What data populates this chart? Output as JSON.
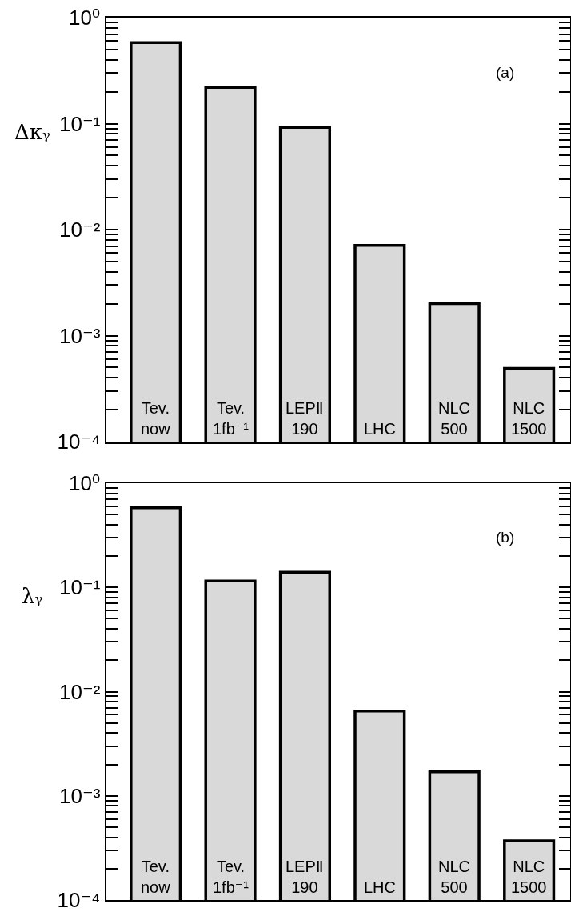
{
  "chart_data": [
    {
      "type": "bar",
      "ylabel": "Δκᵧ",
      "annotations": [
        "(a)"
      ],
      "log": true,
      "color": "#d9d9d9",
      "categories": [
        "Tev.\nnow",
        "Tev.\n1fb⁻¹",
        "LEPⅡ\n190",
        "LHC",
        "NLC\n500",
        "NLC\n1500"
      ],
      "values": [
        0.58,
        0.22,
        0.092,
        0.0071,
        0.002,
        0.00049
      ],
      "ylim": [
        0.0001,
        1
      ],
      "yticks": [
        {
          "value": 1,
          "label": "10⁰"
        },
        {
          "value": 0.1,
          "label": "10⁻¹"
        },
        {
          "value": 0.01,
          "label": "10⁻²"
        },
        {
          "value": 0.001,
          "label": "10⁻³"
        },
        {
          "value": 0.0001,
          "label": "10⁻⁴"
        },
        {
          "value": 0.9,
          "label": null
        },
        {
          "value": 0.8,
          "label": null
        },
        {
          "value": 0.7,
          "label": null
        },
        {
          "value": 0.6,
          "label": null
        },
        {
          "value": 0.5,
          "label": null
        },
        {
          "value": 0.4,
          "label": null
        },
        {
          "value": 0.3,
          "label": null
        },
        {
          "value": 0.2,
          "label": null
        },
        {
          "value": 0.09,
          "label": null
        },
        {
          "value": 0.08,
          "label": null
        },
        {
          "value": 0.07,
          "label": null
        },
        {
          "value": 0.06,
          "label": null
        },
        {
          "value": 0.05,
          "label": null
        },
        {
          "value": 0.04,
          "label": null
        },
        {
          "value": 0.03,
          "label": null
        },
        {
          "value": 0.02,
          "label": null
        },
        {
          "value": 0.009,
          "label": null
        },
        {
          "value": 0.008,
          "label": null
        },
        {
          "value": 0.007,
          "label": null
        },
        {
          "value": 0.006,
          "label": null
        },
        {
          "value": 0.005,
          "label": null
        },
        {
          "value": 0.004,
          "label": null
        },
        {
          "value": 0.003,
          "label": null
        },
        {
          "value": 0.002,
          "label": null
        },
        {
          "value": 0.0009,
          "label": null
        },
        {
          "value": 0.0008,
          "label": null
        },
        {
          "value": 0.0007,
          "label": null
        },
        {
          "value": 0.0006,
          "label": null
        },
        {
          "value": 0.0005,
          "label": null
        },
        {
          "value": 0.0004,
          "label": null
        },
        {
          "value": 0.0003,
          "label": null
        },
        {
          "value": 0.0002,
          "label": null
        }
      ]
    },
    {
      "type": "bar",
      "ylabel": "λᵧ",
      "annotations": [
        "(b)"
      ],
      "log": true,
      "color": "#d9d9d9",
      "categories": [
        "Tev.\nnow",
        "Tev.\n1fb⁻¹",
        "LEPⅡ\n190",
        "LHC",
        "NLC\n500",
        "NLC\n1500"
      ],
      "values": [
        0.58,
        0.115,
        0.14,
        0.0065,
        0.0017,
        0.00037
      ],
      "ylim": [
        0.0001,
        1
      ],
      "yticks": [
        {
          "value": 1,
          "label": "10⁰"
        },
        {
          "value": 0.1,
          "label": "10⁻¹"
        },
        {
          "value": 0.01,
          "label": "10⁻²"
        },
        {
          "value": 0.001,
          "label": "10⁻³"
        },
        {
          "value": 0.0001,
          "label": "10⁻⁴"
        },
        {
          "value": 0.9,
          "label": null
        },
        {
          "value": 0.8,
          "label": null
        },
        {
          "value": 0.7,
          "label": null
        },
        {
          "value": 0.6,
          "label": null
        },
        {
          "value": 0.5,
          "label": null
        },
        {
          "value": 0.4,
          "label": null
        },
        {
          "value": 0.3,
          "label": null
        },
        {
          "value": 0.2,
          "label": null
        },
        {
          "value": 0.09,
          "label": null
        },
        {
          "value": 0.08,
          "label": null
        },
        {
          "value": 0.07,
          "label": null
        },
        {
          "value": 0.06,
          "label": null
        },
        {
          "value": 0.05,
          "label": null
        },
        {
          "value": 0.04,
          "label": null
        },
        {
          "value": 0.03,
          "label": null
        },
        {
          "value": 0.02,
          "label": null
        },
        {
          "value": 0.009,
          "label": null
        },
        {
          "value": 0.008,
          "label": null
        },
        {
          "value": 0.007,
          "label": null
        },
        {
          "value": 0.006,
          "label": null
        },
        {
          "value": 0.005,
          "label": null
        },
        {
          "value": 0.004,
          "label": null
        },
        {
          "value": 0.003,
          "label": null
        },
        {
          "value": 0.002,
          "label": null
        },
        {
          "value": 0.0009,
          "label": null
        },
        {
          "value": 0.0008,
          "label": null
        },
        {
          "value": 0.0007,
          "label": null
        },
        {
          "value": 0.0006,
          "label": null
        },
        {
          "value": 0.0005,
          "label": null
        },
        {
          "value": 0.0004,
          "label": null
        },
        {
          "value": 0.0003,
          "label": null
        },
        {
          "value": 0.0002,
          "label": null
        }
      ]
    }
  ]
}
